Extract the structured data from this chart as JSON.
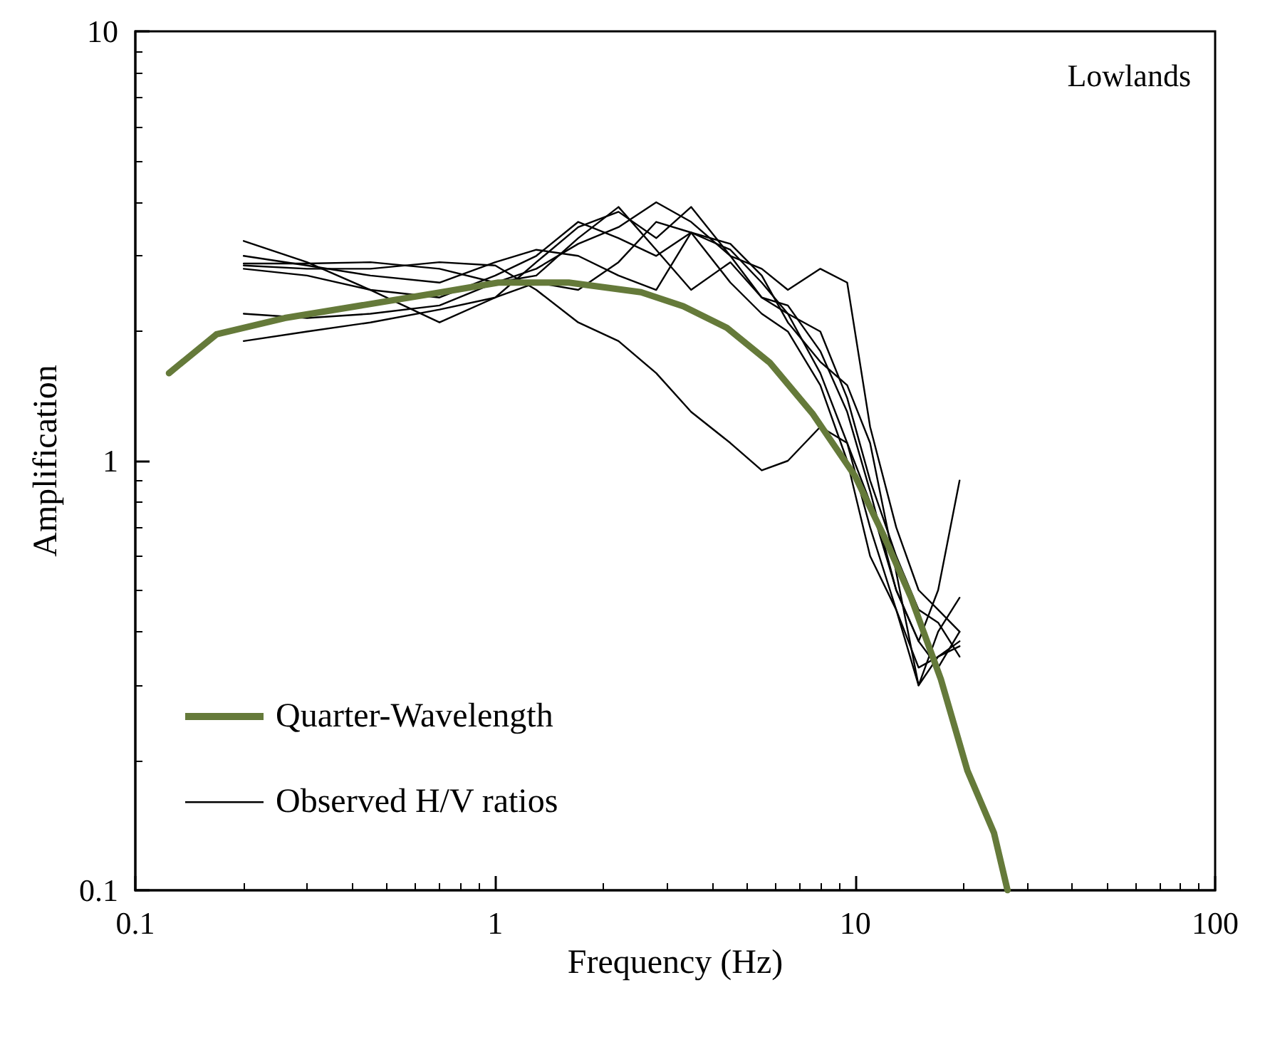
{
  "chart_data": {
    "type": "line",
    "xlabel": "Frequency (Hz)",
    "ylabel": "Amplification",
    "log": "xy",
    "xlim": [
      0.1,
      100
    ],
    "xticks": [
      0.1,
      1,
      10,
      100
    ],
    "ylim": [
      0.1,
      10
    ],
    "yticks": [
      0.1,
      1,
      10
    ],
    "annotations": [
      "Lowlands"
    ],
    "legend": "bottom left",
    "grid": false,
    "marker": "none",
    "line_style": "solid",
    "x": [
      0.2,
      0.3,
      0.45,
      0.7,
      1,
      1.3,
      1.7,
      2.2,
      2.8,
      3.5,
      4.5,
      5.5,
      6.5,
      8,
      9.5,
      11,
      13,
      15,
      17,
      19.5
    ],
    "series": [
      {
        "name": "Quarter-Wavelength",
        "color": "#657a3a",
        "x": [
          0.124,
          0.168,
          0.26,
          0.71,
          1.02,
          1.6,
          2.54,
          3.33,
          4.4,
          5.8,
          7.6,
          10,
          12,
          14.3,
          17.3,
          20.5,
          24.3,
          26.5
        ],
        "values": [
          1.6,
          1.97,
          2.15,
          2.47,
          2.6,
          2.6,
          2.47,
          2.29,
          2.04,
          1.69,
          1.29,
          0.92,
          0.67,
          0.48,
          0.31,
          0.19,
          0.136,
          0.1
        ]
      },
      {
        "name": "Observed H/V ratios",
        "color": "#000000",
        "values": [
          3.25,
          2.9,
          2.5,
          2.1,
          2.4,
          2.9,
          3.5,
          3.8,
          3.3,
          3.9,
          3.0,
          2.4,
          2.2,
          1.6,
          1.1,
          0.8,
          0.5,
          0.38,
          0.33,
          0.4
        ]
      },
      {
        "color": "#000000",
        "values": [
          2.85,
          2.8,
          2.8,
          2.9,
          2.85,
          2.5,
          2.1,
          1.9,
          1.6,
          1.3,
          1.1,
          0.95,
          1.0,
          1.2,
          1.1,
          0.7,
          0.45,
          0.33,
          0.35,
          0.38
        ]
      },
      {
        "color": "#000000",
        "values": [
          2.8,
          2.7,
          2.5,
          2.4,
          2.7,
          3.0,
          3.6,
          3.3,
          3.0,
          3.4,
          3.1,
          2.6,
          2.2,
          2.0,
          1.4,
          0.9,
          0.6,
          0.45,
          0.42,
          0.35
        ]
      },
      {
        "color": "#000000",
        "values": [
          2.2,
          2.15,
          2.2,
          2.3,
          2.6,
          2.8,
          3.2,
          3.5,
          4.0,
          3.6,
          3.0,
          2.8,
          2.5,
          2.8,
          2.6,
          1.2,
          0.7,
          0.5,
          0.45,
          0.4
        ]
      },
      {
        "color": "#000000",
        "values": [
          1.9,
          2.0,
          2.1,
          2.25,
          2.4,
          2.6,
          2.5,
          2.9,
          3.6,
          3.4,
          2.6,
          2.2,
          2.0,
          1.5,
          1.0,
          0.6,
          0.45,
          0.3,
          0.35,
          0.37
        ]
      },
      {
        "color": "#000000",
        "values": [
          2.88,
          2.88,
          2.9,
          2.8,
          2.6,
          2.7,
          3.3,
          3.9,
          3.1,
          2.5,
          2.9,
          2.4,
          2.3,
          1.8,
          1.3,
          0.85,
          0.5,
          0.38,
          0.5,
          0.9
        ]
      },
      {
        "color": "#000000",
        "values": [
          3.0,
          2.85,
          2.7,
          2.6,
          2.9,
          3.1,
          3.0,
          2.7,
          2.5,
          3.4,
          3.2,
          2.7,
          2.1,
          1.7,
          1.5,
          1.1,
          0.55,
          0.3,
          0.4,
          0.48
        ]
      }
    ]
  }
}
